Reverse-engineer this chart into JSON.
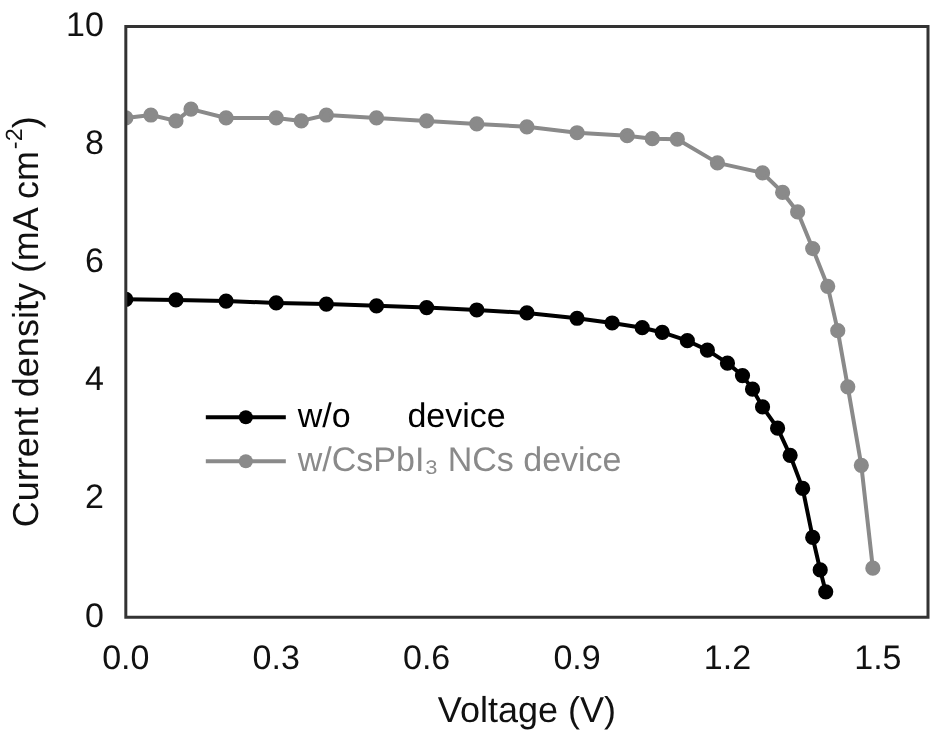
{
  "chart_data": {
    "type": "line",
    "xlabel": "Voltage (V)",
    "ylabel": "Current density (mA cm$^{-2}$)",
    "xlim": [
      0,
      1.6
    ],
    "ylim": [
      0,
      10
    ],
    "xticks": [
      {
        "value": 0,
        "label": "0.0"
      },
      {
        "value": 0.3,
        "label": "0.3"
      },
      {
        "value": 0.6,
        "label": "0.6"
      },
      {
        "value": 0.9,
        "label": "0.9"
      },
      {
        "value": 1.2,
        "label": "1.2"
      },
      {
        "value": 1.5,
        "label": "1.5"
      }
    ],
    "yticks": [
      0,
      2,
      4,
      6,
      8,
      10
    ],
    "grid": false,
    "legend": "bottom left",
    "marker": "circle",
    "line_style": "solid",
    "series": [
      {
        "name": "w/o      device",
        "color": "#000000",
        "x": [
          0,
          0.1,
          0.2,
          0.3,
          0.4,
          0.5,
          0.6,
          0.7,
          0.8,
          0.9,
          0.97,
          1.03,
          1.07,
          1.12,
          1.16,
          1.2,
          1.23,
          1.25,
          1.27,
          1.3,
          1.325,
          1.35,
          1.37,
          1.385,
          1.396
        ],
        "values": [
          5.38,
          5.37,
          5.35,
          5.32,
          5.3,
          5.27,
          5.24,
          5.2,
          5.15,
          5.06,
          4.98,
          4.9,
          4.82,
          4.68,
          4.52,
          4.3,
          4.09,
          3.86,
          3.56,
          3.2,
          2.74,
          2.18,
          1.35,
          0.8,
          0.43
        ]
      },
      {
        "name": "w/CsPbI₃ NCs device",
        "color": "#8a8a8a",
        "x": [
          0,
          0.05,
          0.1,
          0.13,
          0.2,
          0.3,
          0.35,
          0.4,
          0.5,
          0.6,
          0.7,
          0.8,
          0.9,
          1.0,
          1.05,
          1.1,
          1.18,
          1.27,
          1.31,
          1.34,
          1.37,
          1.4,
          1.42,
          1.44,
          1.467,
          1.49
        ],
        "values": [
          8.45,
          8.5,
          8.4,
          8.6,
          8.45,
          8.45,
          8.4,
          8.5,
          8.45,
          8.4,
          8.35,
          8.3,
          8.2,
          8.15,
          8.1,
          8.09,
          7.69,
          7.52,
          7.19,
          6.86,
          6.24,
          5.6,
          4.85,
          3.9,
          2.57,
          0.83
        ]
      }
    ]
  }
}
